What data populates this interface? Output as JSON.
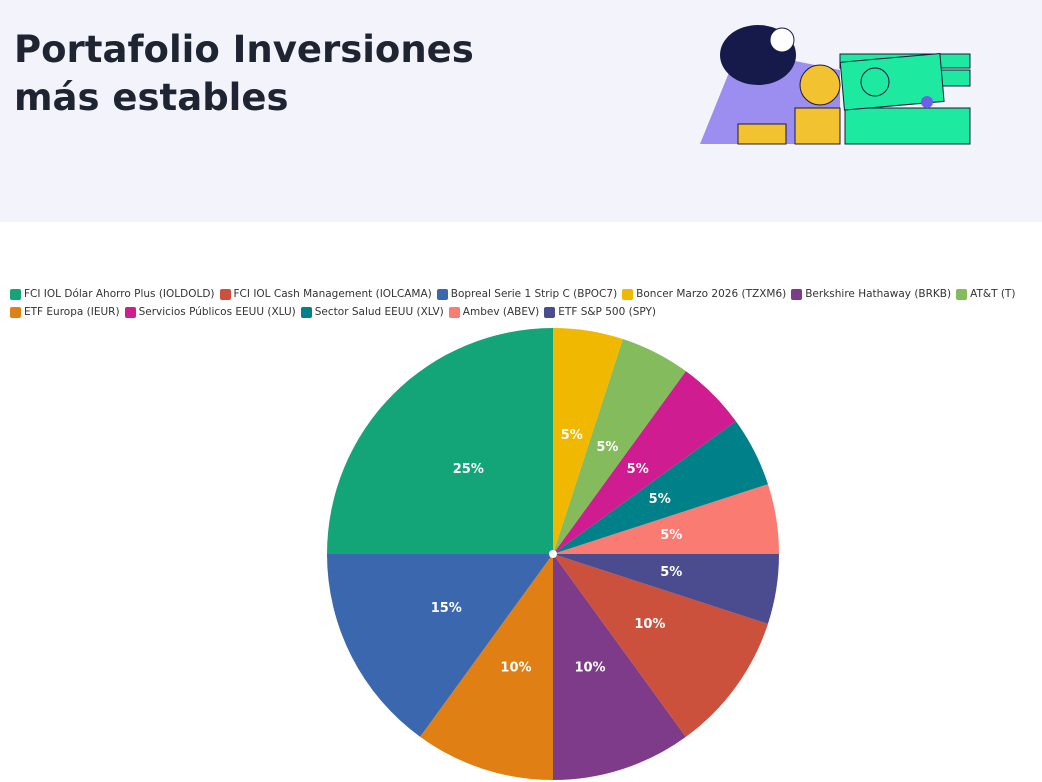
{
  "header": {
    "title_lines": [
      "Portafolio Inversiones",
      "más estables"
    ]
  },
  "chart_data": {
    "type": "pie",
    "direction": "counterclockwise",
    "sort": true,
    "categories": [
      "FCI IOL Dólar Ahorro Plus (IOLDOLD)",
      "FCI IOL Cash Management (IOLCAMA)",
      "Bopreal Serie 1 Strip C (BPOC7)",
      "Boncer Marzo 2026 (TZXM6)",
      "Berkshire Hathaway (BRKB)",
      "AT&T (T)",
      "ETF Europa (IEUR)",
      "Servicios Públicos EEUU (XLU)",
      "Sector Salud EEUU (XLV)",
      "Ambev (ABEV)",
      "ETF S&P 500 (SPY)"
    ],
    "values": [
      25,
      10,
      15,
      5,
      10,
      5,
      10,
      5,
      5,
      5,
      5
    ],
    "value_labels": [
      "25%",
      "10%",
      "15%",
      "5%",
      "10%",
      "5%",
      "10%",
      "5%",
      "5%",
      "5%",
      "5%"
    ],
    "colors": [
      "#13a578",
      "#cc513d",
      "#3a67ad",
      "#f0b800",
      "#7e3b8a",
      "#84bb5c",
      "#e07f14",
      "#cf1c90",
      "#00818a",
      "#f97b72",
      "#4b4b8f"
    ]
  }
}
